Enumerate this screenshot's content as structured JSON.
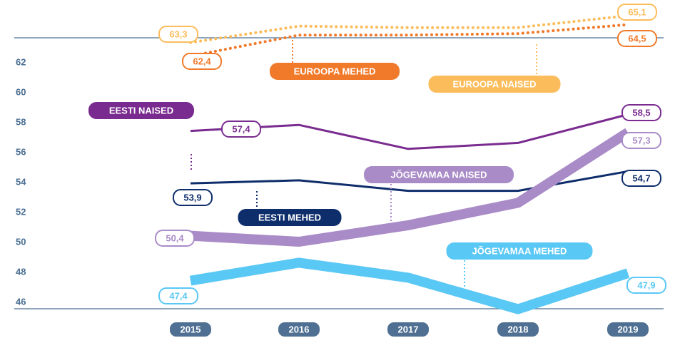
{
  "chart_data": {
    "type": "line",
    "categories": [
      "2015",
      "2016",
      "2017",
      "2018",
      "2019"
    ],
    "ylim": [
      45,
      65.5
    ],
    "yticks": [
      46,
      48,
      50,
      52,
      54,
      56,
      58,
      60,
      62
    ],
    "series": [
      {
        "name": "EUROOPA NAISED",
        "color": "#fbbd5c",
        "style": "dotted",
        "values": [
          63.3,
          64.4,
          64.3,
          64.3,
          65.1
        ],
        "value_labels": [
          "63,3",
          null,
          null,
          null,
          "65,1"
        ]
      },
      {
        "name": "EUROOPA MEHED",
        "color": "#f07a2a",
        "style": "dotted",
        "values": [
          62.4,
          63.8,
          63.8,
          63.9,
          64.5
        ],
        "value_labels": [
          "62,4",
          null,
          null,
          null,
          "64,5"
        ]
      },
      {
        "name": "EESTI NAISED",
        "color": "#7a2b8f",
        "style": "thin",
        "values": [
          57.4,
          57.8,
          56.2,
          56.6,
          58.5
        ],
        "value_labels": [
          "57,4",
          null,
          null,
          null,
          "58,5"
        ]
      },
      {
        "name": "EESTI MEHED",
        "color": "#0e2d6b",
        "style": "thin",
        "values": [
          53.9,
          54.1,
          53.4,
          53.4,
          54.7
        ],
        "value_labels": [
          "53,9",
          null,
          null,
          null,
          "54,7"
        ]
      },
      {
        "name": "JÕGEVAMAA NAISED",
        "color": "#a98bc7",
        "style": "thick",
        "values": [
          50.4,
          50.0,
          51.1,
          52.6,
          57.3
        ],
        "value_labels": [
          "50,4",
          null,
          null,
          null,
          "57,3"
        ]
      },
      {
        "name": "JÕGEVAMAA MEHED",
        "color": "#5ac8f4",
        "style": "thick",
        "values": [
          47.4,
          48.6,
          47.6,
          45.5,
          47.9
        ],
        "value_labels": [
          "47,4",
          null,
          null,
          null,
          "47,9"
        ]
      }
    ]
  }
}
